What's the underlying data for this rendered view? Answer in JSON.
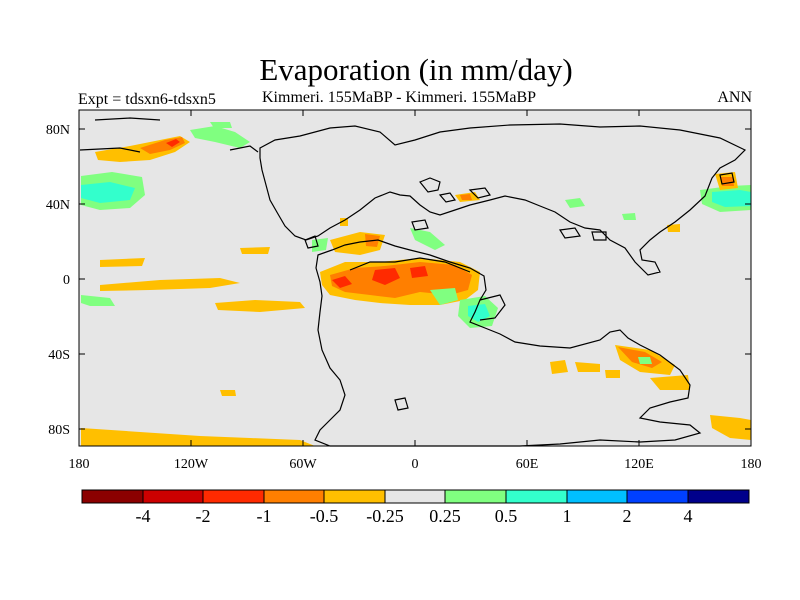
{
  "header": {
    "title": "Evaporation (in mm/day)",
    "experiment": "Expt = tdsxn6-tdsxn5",
    "comparison": "Kimmeri. 155MaBP - Kimmeri. 155MaBP",
    "period": "ANN"
  },
  "axes": {
    "y_ticks": [
      "80N",
      "40N",
      "0",
      "40S",
      "80S"
    ],
    "x_ticks": [
      "180",
      "120W",
      "60W",
      "0",
      "60E",
      "120E",
      "180"
    ]
  },
  "colorbar": {
    "labels": [
      "-4",
      "-2",
      "-1",
      "-0.5",
      "-0.25",
      "0.25",
      "0.5",
      "1",
      "2",
      "4"
    ],
    "colors": [
      "#8b0000",
      "#cc0000",
      "#ff2a00",
      "#ff7f00",
      "#ffbf00",
      "#e6e6e6",
      "#80ff80",
      "#33ffcc",
      "#00bfff",
      "#0040ff",
      "#00008b"
    ]
  },
  "map_colors": {
    "background": "#e6e6e6",
    "neg_025": "#ffbf00",
    "neg_05": "#ff7f00",
    "neg_1": "#ff2a00",
    "pos_025": "#80ff80",
    "pos_05": "#33ffcc"
  }
}
